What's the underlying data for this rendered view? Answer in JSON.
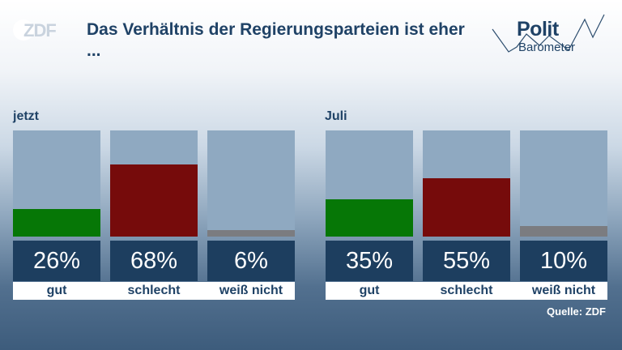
{
  "logo": {
    "text": "ZDF"
  },
  "title": "Das Verhältnis der Regierungsparteien ist eher ...",
  "brand": {
    "line1": "Polit",
    "line2": "Barometer"
  },
  "source": "Quelle: ZDF",
  "chart_data": {
    "type": "bar",
    "title": "Das Verhältnis der Regierungsparteien ist eher ...",
    "ylim": [
      0,
      100
    ],
    "unit": "%",
    "categories": [
      "gut",
      "schlecht",
      "weiß nicht"
    ],
    "colors": [
      "#067706",
      "#760b0b",
      "#7b7c80"
    ],
    "track_color": "#8fa9c1",
    "groups": [
      {
        "label": "jetzt",
        "values": [
          26,
          68,
          6
        ],
        "value_labels": [
          "26%",
          "68%",
          "6%"
        ]
      },
      {
        "label": "Juli",
        "values": [
          35,
          55,
          10
        ],
        "value_labels": [
          "35%",
          "55%",
          "10%"
        ]
      }
    ]
  }
}
